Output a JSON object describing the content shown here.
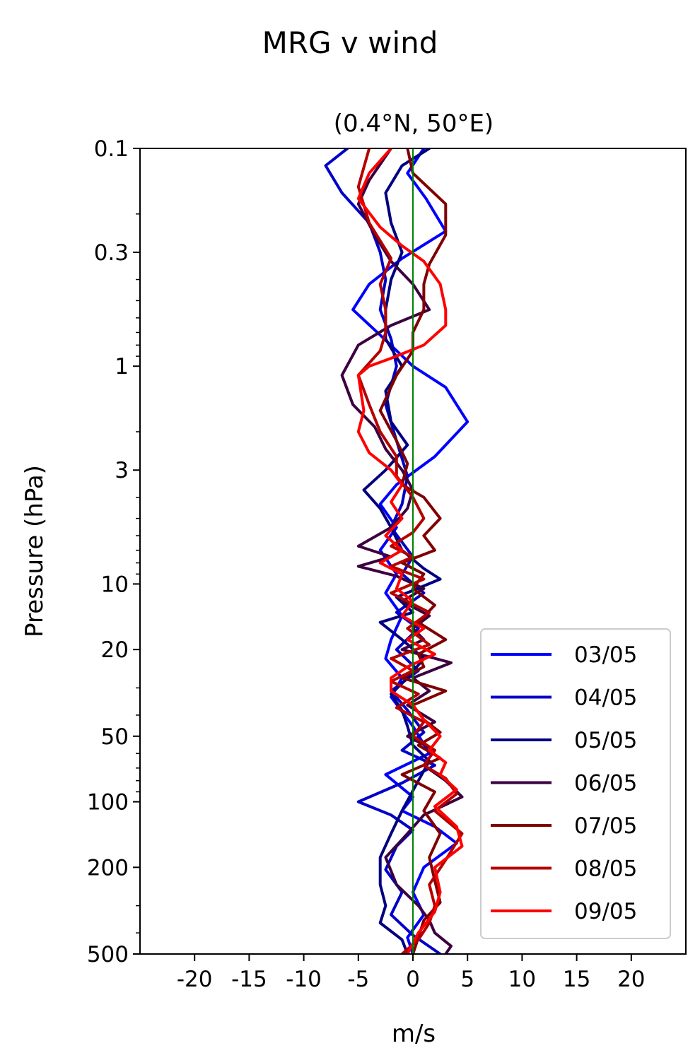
{
  "figure": {
    "suptitle": "MRG v wind",
    "title": "(0.4°N, 50°E)",
    "xlabel": "m/s",
    "ylabel": "Pressure (hPa)"
  },
  "colors": {
    "zero_line": "#008000",
    "axes": "#000000",
    "legend_border": "#cccccc"
  },
  "chart_data": {
    "type": "line",
    "title": "(0.4°N, 50°E)",
    "suptitle": "MRG v wind",
    "xlabel": "m/s",
    "ylabel": "Pressure (hPa)",
    "xlim": [
      -25,
      25
    ],
    "ylim": [
      500,
      0.1
    ],
    "y_scale": "log",
    "y_inverted": true,
    "x_ticks": [
      -20,
      -15,
      -10,
      -5,
      0,
      5,
      10,
      15,
      20
    ],
    "x_tick_labels": [
      "-20",
      "-15",
      "-10",
      "-5",
      "0",
      "5",
      "10",
      "15",
      "20"
    ],
    "y_ticks": [
      0.1,
      0.3,
      1,
      3,
      10,
      20,
      50,
      100,
      200,
      500
    ],
    "y_tick_labels": [
      "0.1",
      "0.3",
      "1",
      "3",
      "10",
      "20",
      "50",
      "100",
      "200",
      "500"
    ],
    "grid": false,
    "legend_position": "bottom-right",
    "reference_line": {
      "x": 0,
      "color": "#008000"
    },
    "series": [
      {
        "name": "03/05",
        "color": "#0000ff",
        "points": [
          [
            1,
            0.1
          ],
          [
            -0.5,
            0.13
          ],
          [
            1.2,
            0.17
          ],
          [
            3,
            0.24
          ],
          [
            -1,
            0.32
          ],
          [
            -4,
            0.42
          ],
          [
            -5.5,
            0.55
          ],
          [
            -3,
            0.72
          ],
          [
            0,
            1
          ],
          [
            3,
            1.25
          ],
          [
            5,
            1.8
          ],
          [
            2,
            2.6
          ],
          [
            -1.5,
            3.5
          ],
          [
            -3,
            4.3
          ],
          [
            -1.5,
            5.5
          ],
          [
            -3,
            7
          ],
          [
            -1.5,
            9
          ],
          [
            -2.5,
            11
          ],
          [
            -1,
            14
          ],
          [
            -2,
            18
          ],
          [
            -2.5,
            22
          ],
          [
            -1,
            27
          ],
          [
            -2,
            33
          ],
          [
            0,
            45
          ],
          [
            1.5,
            60
          ],
          [
            -2.5,
            75
          ],
          [
            0,
            95
          ],
          [
            -1,
            110
          ],
          [
            2,
            130
          ],
          [
            4,
            155
          ],
          [
            1,
            200
          ],
          [
            0,
            260
          ],
          [
            1,
            330
          ],
          [
            -0.5,
            420
          ],
          [
            0,
            500
          ]
        ]
      },
      {
        "name": "04/05",
        "color": "#0000c8",
        "points": [
          [
            -6,
            0.1
          ],
          [
            -8,
            0.12
          ],
          [
            -6.5,
            0.16
          ],
          [
            -4,
            0.22
          ],
          [
            -3,
            0.3
          ],
          [
            -2.5,
            0.4
          ],
          [
            -3,
            0.55
          ],
          [
            -2,
            0.75
          ],
          [
            -1.5,
            1
          ],
          [
            -2.5,
            1.5
          ],
          [
            -1.5,
            2.2
          ],
          [
            -0.5,
            3.2
          ],
          [
            -1,
            4.3
          ],
          [
            -2,
            5.5
          ],
          [
            0,
            7.5
          ],
          [
            -1,
            9
          ],
          [
            1,
            11
          ],
          [
            -1.5,
            13.5
          ],
          [
            0.5,
            16
          ],
          [
            -1.5,
            20
          ],
          [
            0.5,
            25
          ],
          [
            -2,
            31
          ],
          [
            -0.5,
            38
          ],
          [
            1,
            48
          ],
          [
            -1,
            58
          ],
          [
            2,
            68
          ],
          [
            -1,
            82
          ],
          [
            -5,
            100
          ],
          [
            -2,
            115
          ],
          [
            0,
            135
          ],
          [
            -1.5,
            160
          ],
          [
            -2.5,
            205
          ],
          [
            -1,
            260
          ],
          [
            -2,
            330
          ],
          [
            0,
            410
          ],
          [
            2.5,
            500
          ]
        ]
      },
      {
        "name": "05/05",
        "color": "#000080",
        "points": [
          [
            1.5,
            0.1
          ],
          [
            -1,
            0.12
          ],
          [
            -2.5,
            0.16
          ],
          [
            -2,
            0.22
          ],
          [
            -1,
            0.3
          ],
          [
            -2,
            0.4
          ],
          [
            -2.5,
            0.55
          ],
          [
            -2.5,
            0.75
          ],
          [
            -1,
            1
          ],
          [
            -2.5,
            1.3
          ],
          [
            -2,
            1.8
          ],
          [
            -0.5,
            2.3
          ],
          [
            -2.5,
            3
          ],
          [
            -4.5,
            3.7
          ],
          [
            -3,
            4.5
          ],
          [
            -2,
            5.5
          ],
          [
            -1,
            7
          ],
          [
            1,
            8.5
          ],
          [
            2.5,
            9.5
          ],
          [
            -1.5,
            11.5
          ],
          [
            0,
            13.5
          ],
          [
            -3,
            15
          ],
          [
            -1,
            18
          ],
          [
            1,
            22
          ],
          [
            -0.5,
            27
          ],
          [
            -2,
            32
          ],
          [
            -1,
            38
          ],
          [
            -0.5,
            45
          ],
          [
            0,
            55
          ],
          [
            1.5,
            65
          ],
          [
            0.5,
            80
          ],
          [
            -1,
            110
          ],
          [
            -2,
            140
          ],
          [
            -3,
            180
          ],
          [
            -3,
            240
          ],
          [
            -2.5,
            300
          ],
          [
            -3,
            360
          ],
          [
            -1,
            430
          ],
          [
            -0.5,
            500
          ]
        ]
      },
      {
        "name": "06/05",
        "color": "#3c0040",
        "points": [
          [
            -2,
            0.1
          ],
          [
            -4,
            0.14
          ],
          [
            -5,
            0.18
          ],
          [
            -3.5,
            0.25
          ],
          [
            -2,
            0.33
          ],
          [
            0,
            0.42
          ],
          [
            1.5,
            0.55
          ],
          [
            -2,
            0.65
          ],
          [
            -5,
            0.8
          ],
          [
            -6.5,
            1.1
          ],
          [
            -5.5,
            1.5
          ],
          [
            -3.5,
            1.9
          ],
          [
            -2.5,
            2.4
          ],
          [
            -1,
            3
          ],
          [
            0,
            3.7
          ],
          [
            -0.5,
            4.5
          ],
          [
            -2,
            5.5
          ],
          [
            -5,
            6.7
          ],
          [
            -2,
            7.5
          ],
          [
            -5,
            8.3
          ],
          [
            -1.5,
            9.2
          ],
          [
            1,
            10.5
          ],
          [
            -1,
            12
          ],
          [
            1.5,
            14
          ],
          [
            0,
            16
          ],
          [
            1,
            18
          ],
          [
            -1,
            20
          ],
          [
            3.5,
            23
          ],
          [
            0,
            27
          ],
          [
            1.5,
            31
          ],
          [
            -0.5,
            36
          ],
          [
            2,
            43
          ],
          [
            -0.5,
            50
          ],
          [
            2,
            58
          ],
          [
            1,
            68
          ],
          [
            3,
            80
          ],
          [
            4.5,
            95
          ],
          [
            1,
            115
          ],
          [
            -0.5,
            140
          ],
          [
            -2.5,
            180
          ],
          [
            -1.5,
            240
          ],
          [
            0.5,
            300
          ],
          [
            1.5,
            350
          ],
          [
            2,
            400
          ],
          [
            3.5,
            460
          ],
          [
            3,
            500
          ]
        ]
      },
      {
        "name": "07/05",
        "color": "#800000",
        "points": [
          [
            -0.5,
            0.1
          ],
          [
            0,
            0.13
          ],
          [
            3,
            0.18
          ],
          [
            3,
            0.25
          ],
          [
            1.5,
            0.34
          ],
          [
            1,
            0.42
          ],
          [
            1,
            0.55
          ],
          [
            0,
            0.7
          ],
          [
            0,
            0.85
          ],
          [
            -1.5,
            1.1
          ],
          [
            -3,
            1.6
          ],
          [
            -1.5,
            2.2
          ],
          [
            -0.5,
            2.8
          ],
          [
            -1,
            3.5
          ],
          [
            1,
            4
          ],
          [
            2.5,
            5
          ],
          [
            1,
            6
          ],
          [
            2,
            7
          ],
          [
            -1,
            8
          ],
          [
            1,
            9
          ],
          [
            0,
            10.5
          ],
          [
            2,
            12.5
          ],
          [
            0.5,
            15
          ],
          [
            3,
            18
          ],
          [
            0.5,
            21
          ],
          [
            1,
            24
          ],
          [
            -1,
            27
          ],
          [
            3,
            31
          ],
          [
            0,
            36
          ],
          [
            1,
            42
          ],
          [
            2.5,
            48
          ],
          [
            0.5,
            55
          ],
          [
            2.5,
            63
          ],
          [
            -1,
            75
          ],
          [
            2,
            90
          ],
          [
            1,
            110
          ],
          [
            2.5,
            140
          ],
          [
            1.5,
            180
          ],
          [
            2,
            230
          ],
          [
            2.5,
            290
          ],
          [
            1,
            350
          ],
          [
            0.5,
            420
          ],
          [
            0,
            500
          ]
        ]
      },
      {
        "name": "08/05",
        "color": "#b40000",
        "points": [
          [
            -4,
            0.1
          ],
          [
            -5,
            0.15
          ],
          [
            -4,
            0.22
          ],
          [
            -2,
            0.32
          ],
          [
            -3,
            0.42
          ],
          [
            -2.5,
            0.55
          ],
          [
            -2.5,
            0.7
          ],
          [
            -3,
            0.85
          ],
          [
            -5,
            1.1
          ],
          [
            -4,
            1.5
          ],
          [
            -3,
            2
          ],
          [
            -1.5,
            2.6
          ],
          [
            -1.5,
            3.2
          ],
          [
            0,
            4
          ],
          [
            1,
            5
          ],
          [
            0,
            5.8
          ],
          [
            -2,
            6.7
          ],
          [
            0,
            7.5
          ],
          [
            -2,
            8.3
          ],
          [
            1,
            9.5
          ],
          [
            -2,
            11
          ],
          [
            1.5,
            13.5
          ],
          [
            -0.5,
            16
          ],
          [
            1.5,
            19
          ],
          [
            -2,
            22
          ],
          [
            0,
            25
          ],
          [
            -2,
            28
          ],
          [
            0.5,
            32
          ],
          [
            -1.5,
            37
          ],
          [
            1,
            43
          ],
          [
            0,
            50
          ],
          [
            2,
            58
          ],
          [
            1,
            68
          ],
          [
            3,
            78
          ],
          [
            4,
            92
          ],
          [
            2,
            110
          ],
          [
            4.5,
            140
          ],
          [
            3,
            185
          ],
          [
            1.5,
            240
          ],
          [
            2,
            300
          ],
          [
            1.5,
            360
          ],
          [
            0.5,
            430
          ],
          [
            -1,
            500
          ]
        ]
      },
      {
        "name": "09/05",
        "color": "#ff0000",
        "points": [
          [
            -2,
            0.1
          ],
          [
            -4,
            0.13
          ],
          [
            -5,
            0.17
          ],
          [
            -3,
            0.23
          ],
          [
            -1,
            0.28
          ],
          [
            1,
            0.33
          ],
          [
            2.5,
            0.42
          ],
          [
            3,
            0.55
          ],
          [
            3,
            0.65
          ],
          [
            1,
            0.8
          ],
          [
            -2,
            0.92
          ],
          [
            -4,
            1
          ],
          [
            -5,
            1.1
          ],
          [
            -4.5,
            1.6
          ],
          [
            -5,
            2
          ],
          [
            -4,
            2.5
          ],
          [
            -2,
            3
          ],
          [
            -1,
            3.5
          ],
          [
            -2,
            4.2
          ],
          [
            -1,
            5
          ],
          [
            -2.5,
            6
          ],
          [
            -1,
            7
          ],
          [
            -3,
            8
          ],
          [
            -1,
            9
          ],
          [
            -1.5,
            10.5
          ],
          [
            0,
            12
          ],
          [
            -1,
            14
          ],
          [
            1,
            16
          ],
          [
            -0.5,
            18
          ],
          [
            2,
            21
          ],
          [
            -0.5,
            24
          ],
          [
            -2,
            27
          ],
          [
            -2,
            31
          ],
          [
            0,
            36
          ],
          [
            1,
            42
          ],
          [
            2.5,
            50
          ],
          [
            1.5,
            58
          ],
          [
            3,
            66
          ],
          [
            2.5,
            75
          ],
          [
            4,
            88
          ],
          [
            2,
            105
          ],
          [
            4,
            130
          ],
          [
            4.5,
            160
          ],
          [
            2,
            200
          ],
          [
            2.5,
            260
          ],
          [
            2,
            320
          ],
          [
            0.5,
            400
          ],
          [
            -0.5,
            500
          ]
        ]
      }
    ]
  }
}
